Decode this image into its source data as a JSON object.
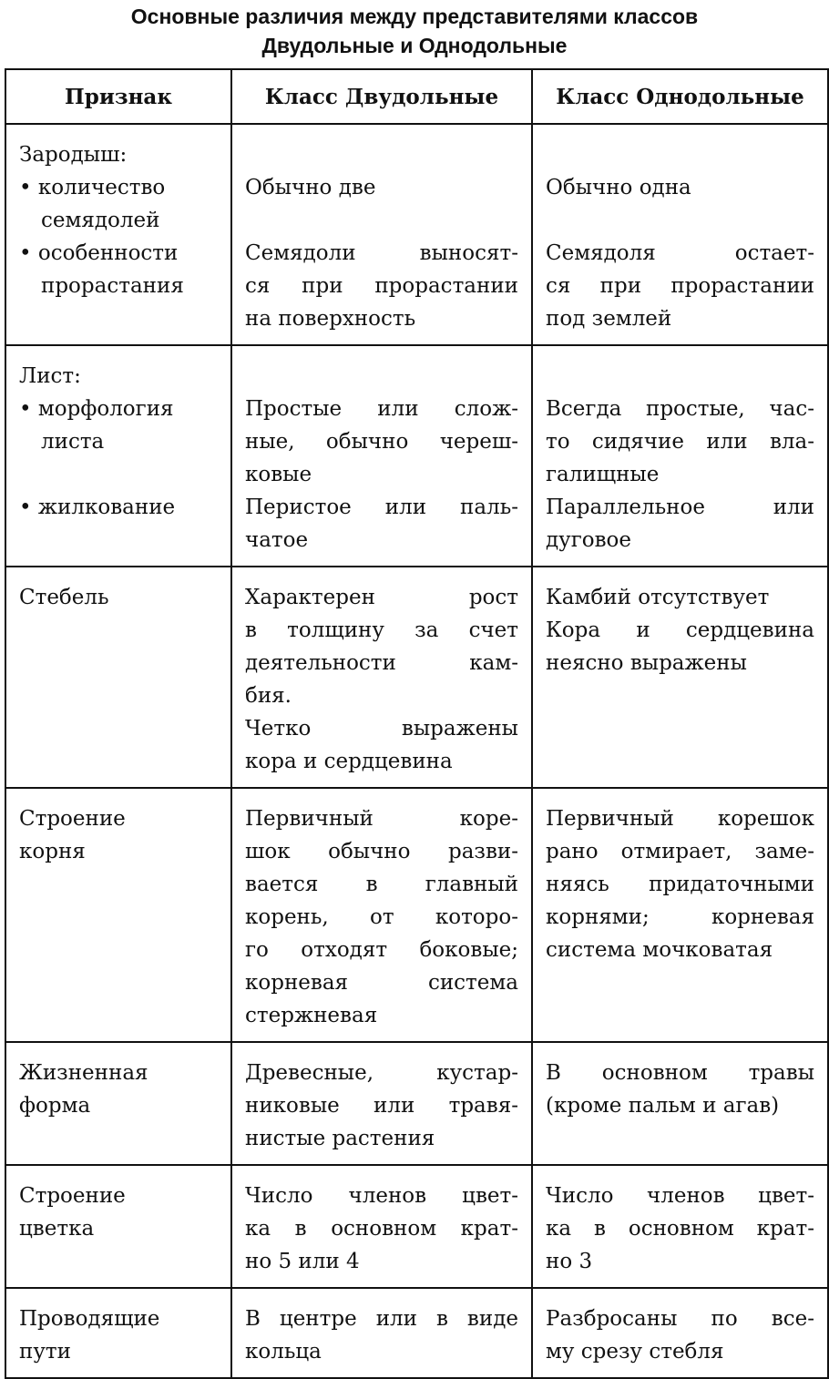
{
  "title": [
    "Основные различия между представителями классов",
    "Двудольные и Однодольные"
  ],
  "headers": [
    "Признак",
    "Класс Двудольные",
    "Класс Однодольные"
  ],
  "rows": [
    [
      [
        [
          "Зародыш:"
        ],
        [
          "• количество",
          "семядолей"
        ],
        [
          "• особенности",
          "прорастания"
        ]
      ],
      [
        [],
        [
          "Обычно две"
        ],
        [],
        [
          "Семядоли выносят-",
          "ся при прорастании",
          "на поверхность"
        ]
      ],
      [
        [],
        [
          "Обычно одна"
        ],
        [],
        [
          "Семядоля остает-",
          "ся при прорастании",
          "под землей"
        ]
      ]
    ],
    [
      [
        [
          "Лист:"
        ],
        [
          "• морфология",
          "листа"
        ],
        [],
        [
          "• жилкование"
        ]
      ],
      [
        [],
        [
          "Простые или слож-",
          "ные, обычно череш-",
          "ковые"
        ],
        [
          "Перистое или паль-",
          "чатое"
        ]
      ],
      [
        [],
        [
          "Всегда простые, час-",
          "то сидячие или вла-",
          "галищные"
        ],
        [
          "Параллельное или",
          "дуговое"
        ]
      ]
    ],
    [
      [
        [
          "Стебель"
        ]
      ],
      [
        [
          "Характерен рост",
          "в толщину за счет",
          "деятельности кам-",
          "бия."
        ],
        [
          "Четко выражены",
          "кора и сердцевина"
        ]
      ],
      [
        [
          "Камбий отсутствует"
        ],
        [
          "Кора и сердцевина",
          "неясно выражены"
        ]
      ]
    ],
    [
      [
        [
          "Строение",
          "корня"
        ]
      ],
      [
        [
          "Первичный коре-",
          "шок обычно разви-",
          "вается в главный",
          "корень, от которо-",
          "го отходят боковые;",
          "корневая система",
          "стержневая"
        ]
      ],
      [
        [
          "Первичный корешок",
          "рано отмирает, заме-",
          "няясь придаточными",
          "корнями; корневая",
          "система мочковатая"
        ]
      ]
    ],
    [
      [
        [
          "Жизненная",
          "форма"
        ]
      ],
      [
        [
          "Древесные, кустар-",
          "никовые или травя-",
          "нистые растения"
        ]
      ],
      [
        [
          "В основном травы",
          "(кроме пальм и агав)"
        ]
      ]
    ],
    [
      [
        [
          "Строение",
          "цветка"
        ]
      ],
      [
        [
          "Число членов цвет-",
          "ка в основном крат-",
          "но 5 или 4"
        ]
      ],
      [
        [
          "Число членов цвет-",
          "ка в основном крат-",
          "но 3"
        ]
      ]
    ],
    [
      [
        [
          "Проводящие",
          "пути"
        ]
      ],
      [
        [
          "В центре или в виде",
          "кольца"
        ]
      ],
      [
        [
          "Разбросаны по все-",
          "му срезу стебля"
        ]
      ]
    ]
  ]
}
